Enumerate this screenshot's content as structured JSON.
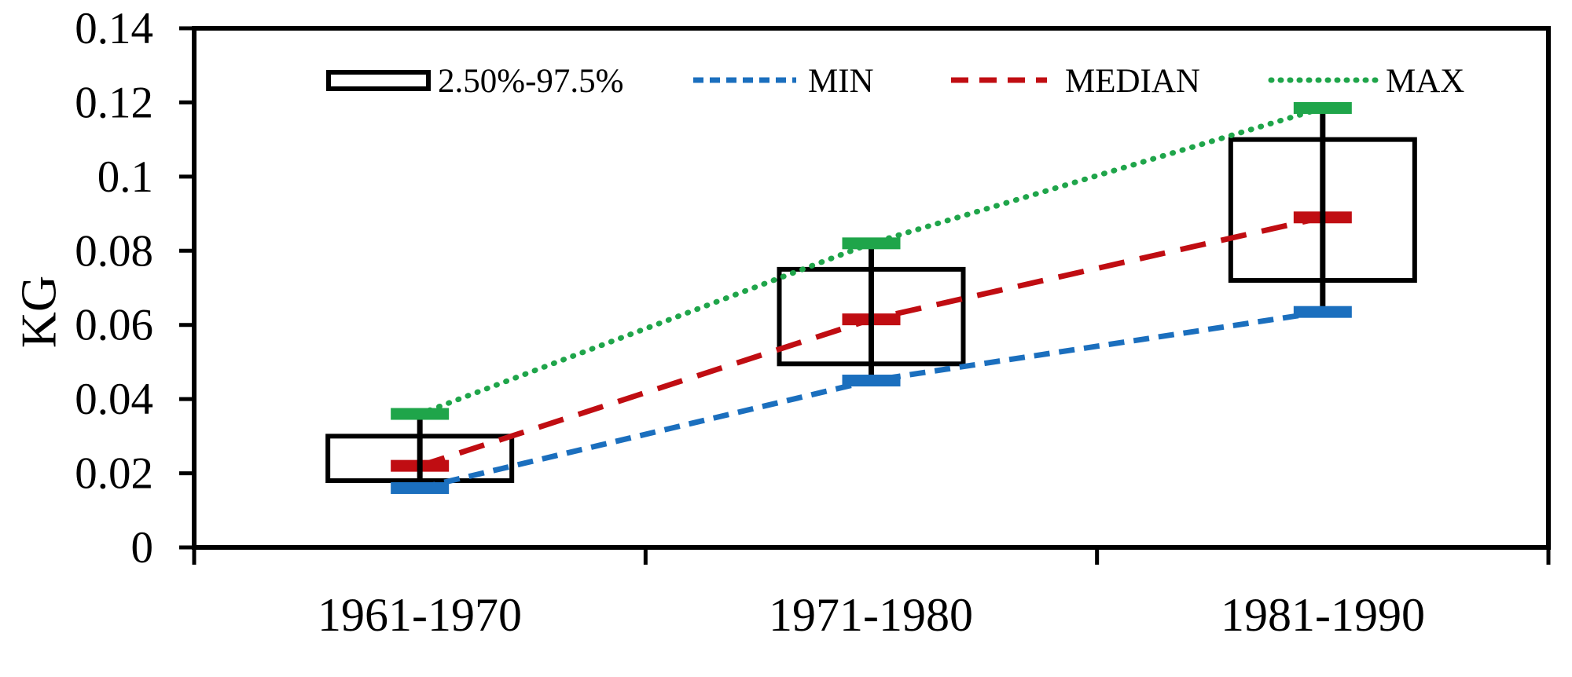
{
  "y_axis": {
    "label": "KG",
    "tick_labels": [
      "0",
      "0.02",
      "0.04",
      "0.06",
      "0.08",
      "0.1",
      "0.12",
      "0.14"
    ],
    "tick_values": [
      0,
      0.02,
      0.04,
      0.06,
      0.08,
      0.1,
      0.12,
      0.14
    ],
    "min": 0,
    "max": 0.14
  },
  "x_axis": {
    "categories": [
      "1961-1970",
      "1971-1980",
      "1981-1990"
    ]
  },
  "legend": {
    "box_label": "2.50%-97.5%",
    "min_label": "MIN",
    "median_label": "MEDIAN",
    "max_label": "MAX"
  },
  "colors": {
    "min": "#1B6FBE",
    "median": "#C00D12",
    "max": "#1FA54A",
    "box": "#000000",
    "axis": "#000000"
  },
  "chart_data": {
    "type": "box",
    "title": "",
    "xlabel": "",
    "ylabel": "KG",
    "ylim": [
      0,
      0.14
    ],
    "ytick_step": 0.02,
    "grid": false,
    "legend_position": "top-inside",
    "categories": [
      "1961-1970",
      "1971-1980",
      "1981-1990"
    ],
    "box_meaning": "2.50%-97.5%",
    "groups": [
      {
        "category": "1961-1970",
        "min": 0.016,
        "p2_5": 0.018,
        "median": 0.022,
        "p97_5": 0.03,
        "max": 0.036
      },
      {
        "category": "1971-1980",
        "min": 0.045,
        "p2_5": 0.0495,
        "median": 0.0615,
        "p97_5": 0.075,
        "max": 0.082
      },
      {
        "category": "1981-1990",
        "min": 0.0635,
        "p2_5": 0.072,
        "median": 0.089,
        "p97_5": 0.11,
        "max": 0.1185
      }
    ],
    "series": [
      {
        "name": "MIN",
        "style": "dashed",
        "values": [
          0.016,
          0.045,
          0.0635
        ]
      },
      {
        "name": "MEDIAN",
        "style": "dashed",
        "values": [
          0.022,
          0.0615,
          0.089
        ]
      },
      {
        "name": "MAX",
        "style": "dotted",
        "values": [
          0.036,
          0.082,
          0.1185
        ]
      }
    ]
  }
}
